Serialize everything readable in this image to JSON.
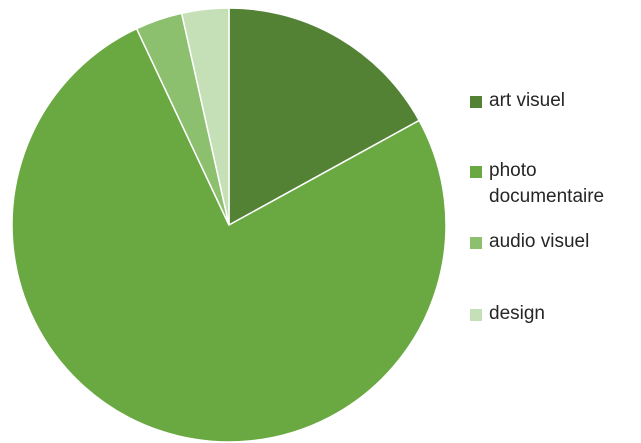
{
  "chart_data": {
    "type": "pie",
    "title": "",
    "start_angle_deg": 0,
    "direction": "clockwise",
    "legend_position": "right",
    "series": [
      {
        "values": [
          17,
          76,
          3.5,
          3.5
        ]
      }
    ],
    "categories": [
      "art visuel",
      "photo documentaire",
      "audio visuel",
      "design"
    ],
    "colors": [
      "#548235",
      "#6aa842",
      "#8cbf6e",
      "#c5dfb7"
    ]
  },
  "legend": {
    "items": [
      {
        "label": "art visuel",
        "color": "#548235"
      },
      {
        "label": "photo documentaire",
        "color": "#6aa842"
      },
      {
        "label": "audio visuel",
        "color": "#8cbf6e"
      },
      {
        "label": "design",
        "color": "#c5dfb7"
      }
    ]
  }
}
